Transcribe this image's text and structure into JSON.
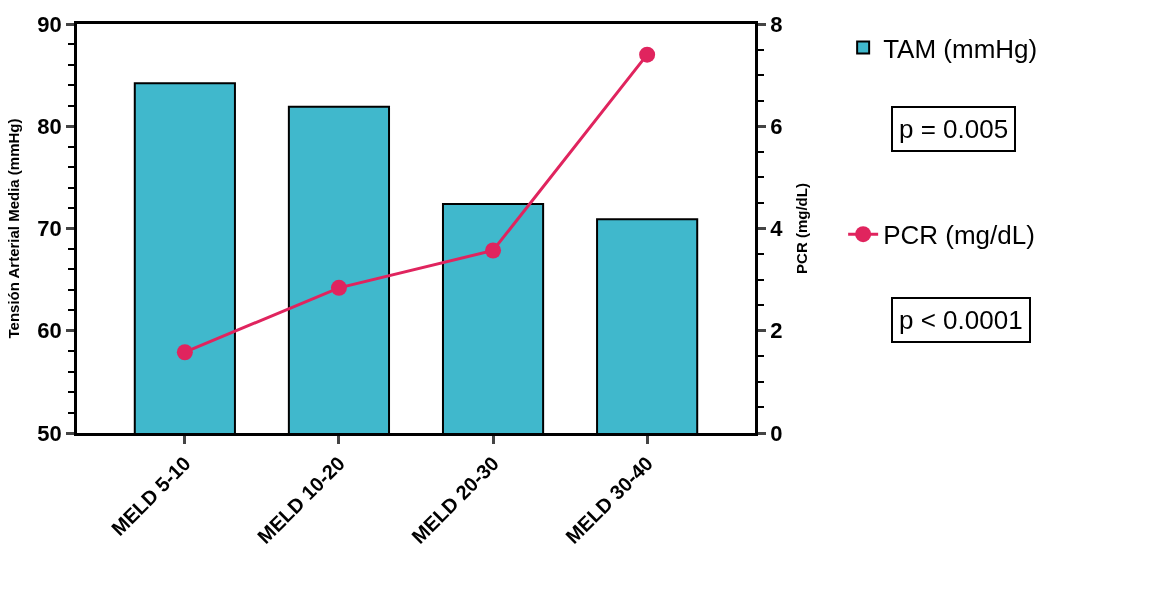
{
  "chart_data": {
    "type": "bar",
    "categories": [
      "MELD 5-10",
      "MELD 10-20",
      "MELD 20-30",
      "MELD 30-40"
    ],
    "ylabel": "Tensión Arterial Media (mmHg)",
    "y2label": "PCR (mg/dL)",
    "series": [
      {
        "name": "TAM (mmHg)",
        "color": "#40b8cc",
        "values": [
          84.2,
          81.9,
          72.4,
          70.9
        ]
      },
      {
        "name": "PCR (mg/dL)",
        "type": "line",
        "axis": "y2",
        "color": "#e0245e",
        "marker": "circle",
        "values": [
          1.58,
          2.84,
          3.57,
          7.4
        ]
      }
    ],
    "ylim": [
      50,
      90
    ],
    "yticks": [
      50,
      60,
      70,
      80,
      90
    ],
    "y2lim": [
      0,
      8
    ],
    "y2ticks": [
      0,
      2,
      4,
      6,
      8
    ],
    "annotations": [
      "p = 0.005",
      "p < 0.0001"
    ],
    "legend": "right"
  }
}
